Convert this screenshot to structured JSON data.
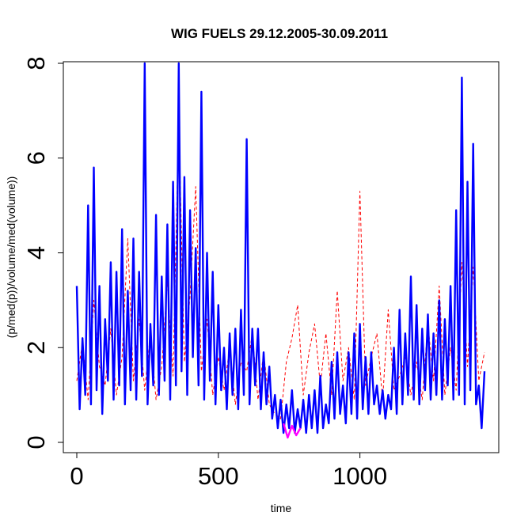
{
  "chart_data": {
    "type": "line",
    "title": "WIG FUELS 29.12.2005-30.09.2011",
    "xlabel": "time",
    "ylabel": "(p/med(p))/volume/med(volume))",
    "xlim": [
      0,
      1440
    ],
    "ylim": [
      0,
      8
    ],
    "x_ticks": [
      0,
      500,
      1000
    ],
    "y_ticks": [
      0,
      2,
      4,
      6,
      8
    ],
    "grid": false,
    "legend": "none",
    "series": [
      {
        "color": "#ff0000",
        "style": "dashed",
        "x": [
          0,
          20,
          40,
          60,
          80,
          100,
          120,
          140,
          160,
          180,
          200,
          220,
          240,
          260,
          280,
          300,
          320,
          340,
          360,
          380,
          400,
          420,
          440,
          460,
          480,
          500,
          520,
          540,
          560,
          580,
          600,
          620,
          640,
          660,
          680,
          700,
          720,
          740,
          760,
          780,
          800,
          820,
          840,
          860,
          880,
          900,
          920,
          940,
          960,
          980,
          1000,
          1020,
          1040,
          1060,
          1080,
          1100,
          1120,
          1140,
          1160,
          1180,
          1200,
          1220,
          1240,
          1260,
          1280,
          1300,
          1320,
          1340,
          1360,
          1380,
          1400,
          1420,
          1440
        ],
        "y": [
          1.3,
          2.1,
          0.9,
          3.0,
          1.6,
          1.2,
          2.4,
          1.0,
          1.8,
          4.3,
          1.3,
          2.6,
          1.1,
          2.3,
          0.9,
          1.6,
          3.4,
          1.4,
          6.9,
          1.7,
          3.1,
          5.4,
          1.5,
          2.6,
          1.0,
          1.8,
          1.1,
          2.0,
          0.8,
          1.7,
          1.5,
          2.3,
          0.9,
          1.9,
          0.8,
          0.6,
          0.5,
          1.7,
          2.2,
          2.9,
          1.0,
          1.9,
          2.5,
          1.2,
          2.3,
          1.0,
          3.2,
          1.3,
          2.0,
          0.9,
          5.3,
          1.2,
          1.8,
          2.3,
          0.9,
          2.8,
          1.1,
          1.4,
          1.8,
          1.0,
          1.7,
          0.9,
          2.5,
          1.3,
          3.3,
          1.0,
          2.0,
          1.1,
          3.8,
          1.6,
          3.7,
          1.3,
          1.9
        ]
      },
      {
        "color": "#0000ff",
        "style": "solid",
        "x": [
          0,
          10,
          20,
          30,
          40,
          50,
          60,
          70,
          80,
          90,
          100,
          110,
          120,
          130,
          140,
          150,
          160,
          170,
          180,
          190,
          200,
          210,
          220,
          230,
          240,
          250,
          260,
          270,
          280,
          290,
          300,
          310,
          320,
          330,
          340,
          350,
          360,
          370,
          380,
          390,
          400,
          410,
          420,
          430,
          440,
          450,
          460,
          470,
          480,
          490,
          500,
          510,
          520,
          530,
          540,
          550,
          560,
          570,
          580,
          590,
          600,
          610,
          620,
          630,
          640,
          650,
          660,
          670,
          680,
          690,
          700,
          710,
          720,
          730,
          740,
          750,
          760,
          770,
          780,
          790,
          800,
          810,
          820,
          830,
          840,
          850,
          860,
          870,
          880,
          890,
          900,
          910,
          920,
          930,
          940,
          950,
          960,
          970,
          980,
          990,
          1000,
          1010,
          1020,
          1030,
          1040,
          1050,
          1060,
          1070,
          1080,
          1090,
          1100,
          1110,
          1120,
          1130,
          1140,
          1150,
          1160,
          1170,
          1180,
          1190,
          1200,
          1210,
          1220,
          1230,
          1240,
          1250,
          1260,
          1270,
          1280,
          1290,
          1300,
          1310,
          1320,
          1330,
          1340,
          1350,
          1360,
          1370,
          1380,
          1390,
          1400,
          1410,
          1420,
          1430,
          1440
        ],
        "y": [
          3.3,
          0.7,
          2.2,
          1.0,
          5.0,
          0.8,
          5.8,
          1.1,
          3.3,
          0.6,
          2.6,
          1.3,
          3.8,
          0.9,
          3.6,
          1.2,
          4.5,
          0.8,
          3.2,
          1.1,
          4.3,
          0.9,
          3.6,
          1.4,
          8.0,
          0.8,
          2.5,
          1.2,
          4.8,
          1.0,
          3.5,
          1.3,
          4.6,
          0.9,
          5.5,
          1.2,
          8.0,
          1.5,
          5.6,
          1.0,
          4.9,
          1.8,
          4.1,
          1.2,
          7.4,
          0.9,
          4.0,
          1.3,
          3.6,
          0.8,
          2.9,
          1.1,
          2.0,
          0.7,
          2.3,
          1.0,
          2.4,
          0.7,
          2.8,
          1.0,
          6.4,
          0.8,
          2.4,
          1.2,
          2.4,
          0.7,
          1.9,
          0.8,
          1.6,
          0.5,
          1.0,
          0.3,
          0.9,
          0.2,
          0.8,
          0.3,
          1.1,
          0.2,
          0.7,
          0.3,
          0.9,
          0.2,
          1.0,
          0.3,
          1.1,
          0.2,
          1.4,
          0.3,
          0.8,
          0.4,
          1.7,
          0.5,
          1.9,
          0.6,
          1.2,
          0.4,
          1.9,
          0.6,
          2.3,
          0.5,
          2.5,
          0.7,
          1.8,
          0.6,
          1.9,
          0.8,
          1.2,
          0.6,
          1.1,
          0.5,
          1.0,
          0.7,
          2.0,
          0.6,
          2.8,
          0.8,
          2.3,
          1.0,
          3.5,
          0.9,
          2.9,
          0.8,
          2.4,
          1.1,
          2.7,
          0.9,
          2.3,
          1.0,
          3.0,
          0.9,
          2.6,
          1.2,
          3.3,
          0.9,
          4.9,
          1.0,
          7.7,
          0.8,
          5.5,
          1.1,
          6.3,
          0.8,
          1.2,
          0.3,
          1.5
        ]
      },
      {
        "color": "#ff00ff",
        "style": "solid",
        "x": [
          730,
          745,
          760,
          775,
          790
        ],
        "y": [
          0.4,
          0.1,
          0.35,
          0.15,
          0.3
        ]
      }
    ]
  }
}
